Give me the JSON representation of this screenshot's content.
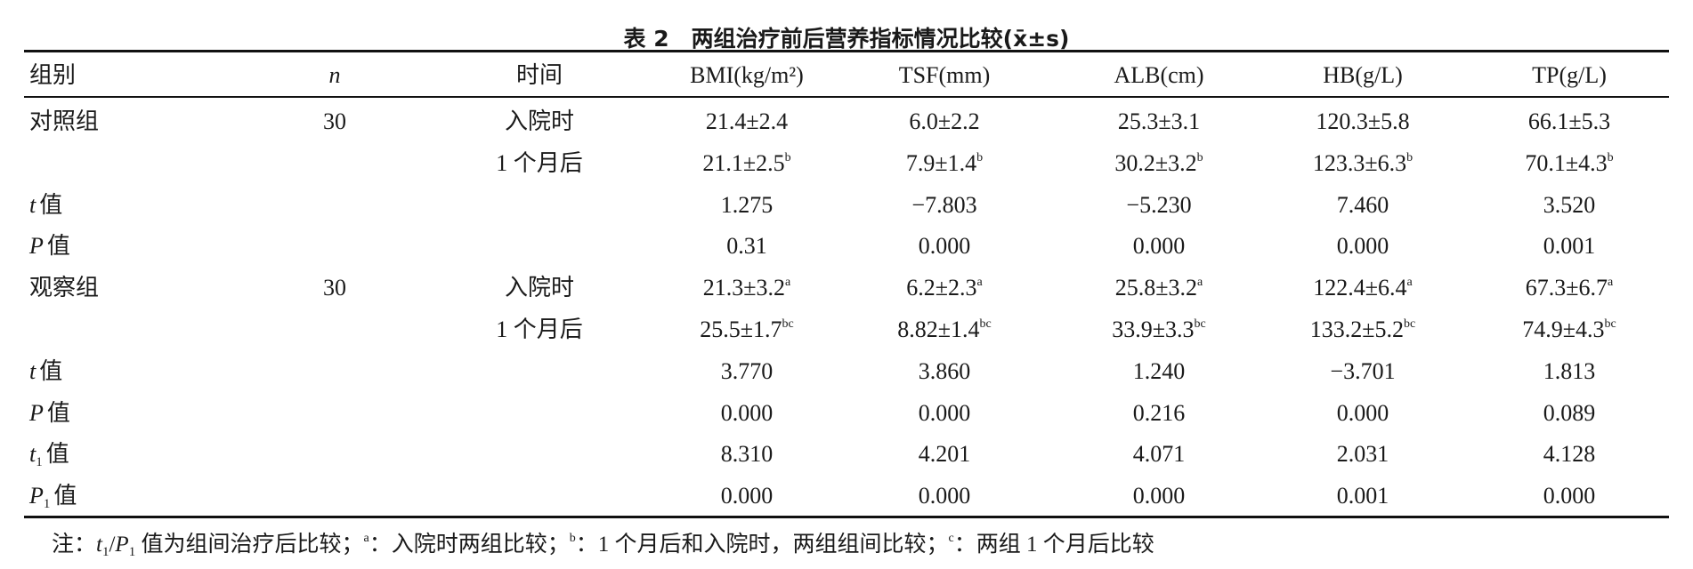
{
  "title": "表 2　两组治疗前后营养指标情况比较(x̄±s)",
  "table": {
    "header": [
      "组别",
      "n",
      "时间",
      "BMI(kg/m²)",
      "TSF(mm)",
      "ALB(cm)",
      "HB(g/L)",
      "TP(g/L)"
    ],
    "rows": [
      [
        "对照组",
        "30",
        "入院时",
        "21.4±2.4",
        "6.0±2.2",
        "25.3±3.1",
        "120.3±5.8",
        "66.1±5.3"
      ],
      [
        null,
        null,
        "1 个月后",
        {
          "text": "21.1±2.5",
          "sup": "b"
        },
        {
          "text": "7.9±1.4",
          "sup": "b"
        },
        {
          "text": "30.2±3.2",
          "sup": "b"
        },
        {
          "text": "123.3±6.3",
          "sup": "b"
        },
        {
          "text": "70.1±4.3",
          "sup": "b"
        }
      ],
      [
        {
          "var": "t",
          "text": "值"
        },
        null,
        null,
        "1.275",
        "−7.803",
        "−5.230",
        "7.460",
        "3.520"
      ],
      [
        {
          "var": "P",
          "text": "值"
        },
        null,
        null,
        "0.31",
        "0.000",
        "0.000",
        "0.000",
        "0.001"
      ],
      [
        "观察组",
        "30",
        "入院时",
        {
          "text": "21.3±3.2",
          "sup": "a"
        },
        {
          "text": "6.2±2.3",
          "sup": "a"
        },
        {
          "text": "25.8±3.2",
          "sup": "a"
        },
        {
          "text": "122.4±6.4",
          "sup": "a"
        },
        {
          "text": "67.3±6.7",
          "sup": "a"
        }
      ],
      [
        null,
        null,
        "1 个月后",
        {
          "text": "25.5±1.7",
          "sup": "bc"
        },
        {
          "text": "8.82±1.4",
          "sup": "bc"
        },
        {
          "text": "33.9±3.3",
          "sup": "bc"
        },
        {
          "text": "133.2±5.2",
          "sup": "bc"
        },
        {
          "text": "74.9±4.3",
          "sup": "bc"
        }
      ],
      [
        {
          "var": "t",
          "text": "值"
        },
        null,
        null,
        "3.770",
        "3.860",
        "1.240",
        "−3.701",
        "1.813"
      ],
      [
        {
          "var": "P",
          "text": "值"
        },
        null,
        null,
        "0.000",
        "0.000",
        "0.216",
        "0.000",
        "0.089"
      ],
      [
        {
          "var": "t",
          "sub": "1",
          "text": "值"
        },
        null,
        null,
        "8.310",
        "4.201",
        "4.071",
        "2.031",
        "4.128"
      ],
      [
        {
          "var": "P",
          "sub": "1",
          "text": "值"
        },
        null,
        null,
        "0.000",
        "0.000",
        "0.000",
        "0.001",
        "0.000"
      ]
    ]
  },
  "note": [
    {
      "text": "注："
    },
    {
      "text": "t",
      "style": "i"
    },
    {
      "text": "1",
      "style": "sub"
    },
    {
      "text": "/"
    },
    {
      "text": "P",
      "style": "i"
    },
    {
      "text": "1",
      "style": "sub"
    },
    {
      "text": " 值为组间治疗后比较；"
    },
    {
      "text": "a",
      "style": "sup"
    },
    {
      "text": "：入院时两组比较；"
    },
    {
      "text": "b",
      "style": "sup"
    },
    {
      "text": "：1 个月后和入院时，两组组间比较；"
    },
    {
      "text": "c",
      "style": "sup"
    },
    {
      "text": "：两组 1 个月后比较"
    }
  ]
}
